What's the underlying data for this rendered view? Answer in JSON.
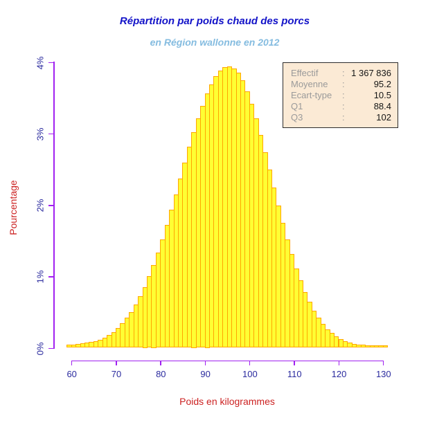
{
  "title": "Répartition par poids chaud des porcs",
  "subtitle": "en Région wallonne en 2012",
  "legend": {
    "rows": [
      {
        "label": "Effectif",
        "colon": ":",
        "value": "1 367 836"
      },
      {
        "label": "Moyenne",
        "colon": ":",
        "value": "95.2"
      },
      {
        "label": "Ecart-type",
        "colon": ":",
        "value": "10.5"
      },
      {
        "label": "Q1",
        "colon": ":",
        "value": "88.4"
      },
      {
        "label": "Q3",
        "colon": ":",
        "value": "102"
      }
    ]
  },
  "colors": {
    "title": "#1212C8",
    "subtitle": "#85BCE0",
    "axis": "#A020F0",
    "tick_labels": "#2A2A9E",
    "axis_titles": "#CC2222",
    "bar_fill": "#FFFF33",
    "bar_border": "#FFA500",
    "legend_bg": "#FBEAD5",
    "legend_label": "#9A9A9A",
    "legend_value": "#151515"
  },
  "chart_data": {
    "type": "bar",
    "title": "Répartition par poids chaud des porcs",
    "subtitle": "en Région wallonne en 2012",
    "xlabel": "Poids en kilogrammes",
    "ylabel": "Pourcentage",
    "bin_width_kg": 1,
    "xlim": [
      59,
      131
    ],
    "ylim": [
      0,
      4
    ],
    "grid": false,
    "legend_position": "top-right",
    "x_ticks": [
      60,
      70,
      80,
      90,
      100,
      110,
      120,
      130
    ],
    "y_ticks": [
      0,
      1,
      2,
      3,
      4
    ],
    "y_tick_labels": [
      "0%",
      "1%",
      "2%",
      "3%",
      "4%"
    ],
    "categories": [
      59,
      60,
      61,
      62,
      63,
      64,
      65,
      66,
      67,
      68,
      69,
      70,
      71,
      72,
      73,
      74,
      75,
      76,
      77,
      78,
      79,
      80,
      81,
      82,
      83,
      84,
      85,
      86,
      87,
      88,
      89,
      90,
      91,
      92,
      93,
      94,
      95,
      96,
      97,
      98,
      99,
      100,
      101,
      102,
      103,
      104,
      105,
      106,
      107,
      108,
      109,
      110,
      111,
      112,
      113,
      114,
      115,
      116,
      117,
      118,
      119,
      120,
      121,
      122,
      123,
      124,
      125,
      126,
      127,
      128,
      129,
      130
    ],
    "values": [
      0.04,
      0.045,
      0.05,
      0.06,
      0.07,
      0.08,
      0.09,
      0.11,
      0.14,
      0.18,
      0.22,
      0.28,
      0.34,
      0.42,
      0.5,
      0.61,
      0.72,
      0.85,
      1.0,
      1.16,
      1.33,
      1.52,
      1.72,
      1.93,
      2.15,
      2.37,
      2.59,
      2.81,
      3.02,
      3.21,
      3.39,
      3.56,
      3.69,
      3.8,
      3.88,
      3.93,
      3.94,
      3.91,
      3.85,
      3.74,
      3.59,
      3.41,
      3.21,
      2.98,
      2.74,
      2.49,
      2.24,
      1.99,
      1.75,
      1.52,
      1.31,
      1.11,
      0.94,
      0.78,
      0.64,
      0.52,
      0.42,
      0.33,
      0.26,
      0.21,
      0.16,
      0.12,
      0.09,
      0.07,
      0.055,
      0.045,
      0.04,
      0.035,
      0.035,
      0.03,
      0.03,
      0.03
    ]
  }
}
